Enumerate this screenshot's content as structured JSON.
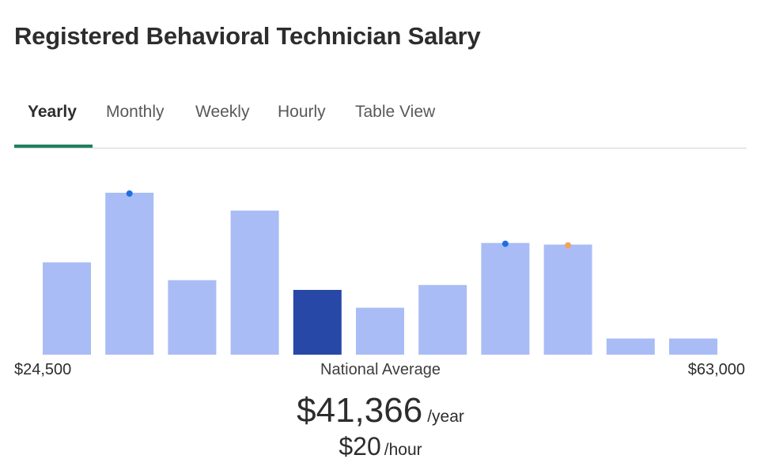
{
  "title": "Registered Behavioral Technician Salary",
  "tabs": [
    {
      "label": "Yearly",
      "active": true
    },
    {
      "label": "Monthly",
      "active": false
    },
    {
      "label": "Weekly",
      "active": false
    },
    {
      "label": "Hourly",
      "active": false
    },
    {
      "label": "Table View",
      "active": false
    }
  ],
  "colors": {
    "bar": "#a9bcf5",
    "bar_highlight": "#2748a6",
    "marker_blue": "#1f6fe0",
    "marker_orange": "#f5a15c",
    "tab_indicator": "#1f7f61"
  },
  "chart_data": {
    "type": "bar",
    "bins": 11,
    "values": [
      57,
      100,
      46,
      89,
      40,
      29,
      43,
      69,
      68,
      10,
      10
    ],
    "highlight_index": 4,
    "markers": [
      {
        "bin": 1,
        "color": "marker_blue"
      },
      {
        "bin": 7,
        "color": "marker_blue"
      },
      {
        "bin": 8,
        "color": "marker_orange"
      }
    ],
    "x_min_label": "$24,500",
    "x_max_label": "$63,000",
    "center_label": "National Average"
  },
  "salary": {
    "yearly_value": "$41,366",
    "yearly_unit": "/year",
    "hourly_value": "$20",
    "hourly_unit": "/hour"
  }
}
